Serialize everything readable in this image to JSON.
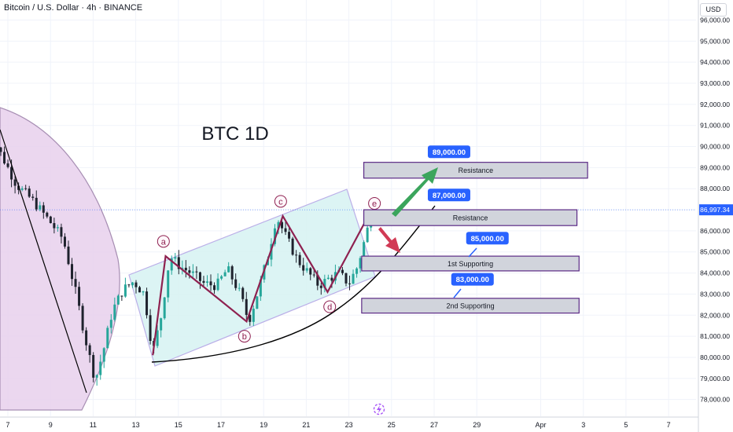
{
  "header": {
    "title": "Bitcoin / U.S. Dollar · 4h · BINANCE",
    "currency": "USD"
  },
  "chart_data": {
    "type": "candlestick",
    "title": "BTC 1D",
    "price_axis": {
      "ylim": [
        77500,
        96800
      ],
      "ticks": [
        96000,
        95000,
        94000,
        93000,
        92000,
        91000,
        90000,
        89000,
        88000,
        87000,
        86000,
        85000,
        84000,
        83000,
        82000,
        81000,
        80000,
        79000,
        78000
      ],
      "tick_labels": [
        "96,000.00",
        "95,000.00",
        "94,000.00",
        "93,000.00",
        "92,000.00",
        "91,000.00",
        "90,000.00",
        "89,000.00",
        "88,000.00",
        "87,000.00",
        "86,000.00",
        "85,000.00",
        "84,000.00",
        "83,000.00",
        "82,000.00",
        "81,000.00",
        "80,000.00",
        "79,000.00",
        "78,000.00"
      ]
    },
    "time_axis": {
      "ticks": [
        {
          "label": "7",
          "day": 7
        },
        {
          "label": "9",
          "day": 9
        },
        {
          "label": "11",
          "day": 11
        },
        {
          "label": "13",
          "day": 13
        },
        {
          "label": "15",
          "day": 15
        },
        {
          "label": "17",
          "day": 17
        },
        {
          "label": "19",
          "day": 19
        },
        {
          "label": "21",
          "day": 21
        },
        {
          "label": "23",
          "day": 23
        },
        {
          "label": "25",
          "day": 25
        },
        {
          "label": "27",
          "day": 27
        },
        {
          "label": "29",
          "day": 29
        },
        {
          "label": "Apr",
          "day": 32
        },
        {
          "label": "3",
          "day": 34
        },
        {
          "label": "5",
          "day": 36
        },
        {
          "label": "7",
          "day": 38
        }
      ]
    },
    "current_price": {
      "value": 86997.34,
      "label": "86,997.34",
      "color": "#2962ff"
    },
    "price_path": [
      {
        "day": 6.0,
        "price": 91000
      },
      {
        "day": 6.6,
        "price": 89800
      },
      {
        "day": 7.4,
        "price": 88200
      },
      {
        "day": 8.2,
        "price": 87400
      },
      {
        "day": 9.0,
        "price": 86400
      },
      {
        "day": 9.6,
        "price": 85600
      },
      {
        "day": 10.2,
        "price": 83000
      },
      {
        "day": 10.7,
        "price": 80600
      },
      {
        "day": 11.1,
        "price": 78900
      },
      {
        "day": 11.5,
        "price": 80400
      },
      {
        "day": 11.9,
        "price": 82200
      },
      {
        "day": 12.4,
        "price": 83200
      },
      {
        "day": 12.9,
        "price": 83600
      },
      {
        "day": 13.4,
        "price": 83000
      },
      {
        "day": 13.8,
        "price": 80200
      },
      {
        "day": 14.2,
        "price": 82000
      },
      {
        "day": 14.6,
        "price": 84800
      },
      {
        "day": 15.1,
        "price": 84300
      },
      {
        "day": 15.6,
        "price": 84000
      },
      {
        "day": 16.2,
        "price": 83500
      },
      {
        "day": 16.8,
        "price": 83400
      },
      {
        "day": 17.3,
        "price": 84200
      },
      {
        "day": 17.9,
        "price": 83000
      },
      {
        "day": 18.3,
        "price": 81700
      },
      {
        "day": 18.7,
        "price": 83000
      },
      {
        "day": 19.2,
        "price": 84800
      },
      {
        "day": 19.6,
        "price": 86700
      },
      {
        "day": 20.1,
        "price": 85600
      },
      {
        "day": 20.6,
        "price": 84600
      },
      {
        "day": 21.1,
        "price": 84000
      },
      {
        "day": 21.6,
        "price": 83400
      },
      {
        "day": 22.0,
        "price": 83700
      },
      {
        "day": 22.5,
        "price": 84000
      },
      {
        "day": 23.0,
        "price": 83500
      },
      {
        "day": 23.4,
        "price": 84300
      },
      {
        "day": 23.8,
        "price": 85800
      },
      {
        "day": 24.1,
        "price": 86997
      }
    ],
    "zigzag": [
      {
        "label": "a",
        "day": 13.8,
        "price": 80100,
        "to": null
      },
      {
        "label": "a",
        "day": 14.4,
        "price": 84800
      },
      {
        "label": "b",
        "day": 18.2,
        "price": 81700
      },
      {
        "label": "c",
        "day": 19.9,
        "price": 86700
      },
      {
        "label": "d",
        "day": 22.0,
        "price": 83100
      },
      {
        "label": "e",
        "day": 23.8,
        "price": 86500
      }
    ],
    "point_labels": [
      {
        "label": "a",
        "day": 14.3,
        "price": 85500
      },
      {
        "label": "b",
        "day": 18.1,
        "price": 81000
      },
      {
        "label": "c",
        "day": 19.8,
        "price": 87400
      },
      {
        "label": "d",
        "day": 22.1,
        "price": 82400
      },
      {
        "label": "e",
        "day": 24.2,
        "price": 87300
      }
    ],
    "zones": [
      {
        "label": "Resistance",
        "day_start": 23.7,
        "day_end": 34.2,
        "price_top": 89250,
        "price_bottom": 88500
      },
      {
        "label": "Resistance",
        "day_start": 23.7,
        "day_end": 33.7,
        "price_top": 87000,
        "price_bottom": 86250
      },
      {
        "label": "1st Supporting",
        "day_start": 23.6,
        "day_end": 33.8,
        "price_top": 84800,
        "price_bottom": 84100
      },
      {
        "label": "2nd Supporting",
        "day_start": 23.6,
        "day_end": 33.8,
        "price_top": 82800,
        "price_bottom": 82100
      }
    ],
    "price_tags": [
      {
        "label": "89,000.00",
        "day": 27.7,
        "price": 89750
      },
      {
        "label": "87,000.00",
        "day": 27.7,
        "price": 87700
      },
      {
        "label": "85,000.00",
        "day": 29.5,
        "price": 85650
      },
      {
        "label": "83,000.00",
        "day": 28.8,
        "price": 83700
      }
    ],
    "colors": {
      "up": "#26a69a",
      "down": "#1e222d",
      "zigzag": "#8e2150",
      "channel_fill": "#d9f3f3",
      "channel_stroke": "#b4a7e6",
      "arc_fill": "#e9d3ee",
      "arc_stroke": "#9e82ab",
      "zone_fill": "#d1d4dc",
      "zone_stroke": "#5b2a86",
      "tag": "#2962ff",
      "arrow_up": "#3ba55c",
      "arrow_down": "#d13a55"
    }
  }
}
